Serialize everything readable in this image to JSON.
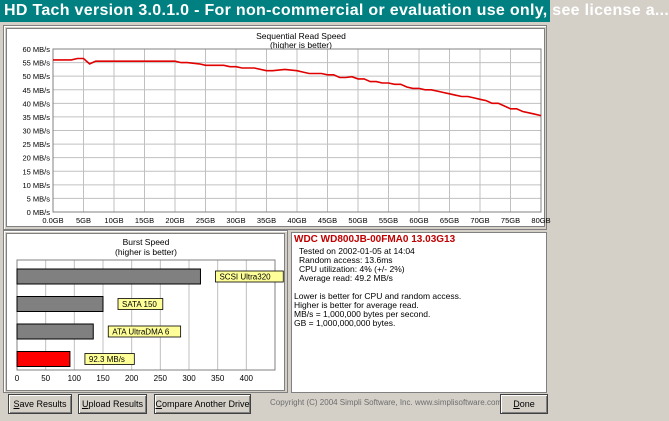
{
  "window": {
    "title": "HD Tach version 3.0.1.0  - For non-commercial or evaluation use only, see license a..."
  },
  "read_chart": {
    "title": "Sequential Read Speed",
    "subtitle": "(higher is better)",
    "y_ticks": [
      "60 MB/s",
      "55 MB/s",
      "50 MB/s",
      "45 MB/s",
      "40 MB/s",
      "35 MB/s",
      "30 MB/s",
      "25 MB/s",
      "20 MB/s",
      "15 MB/s",
      "10 MB/s",
      "5 MB/s",
      "0 MB/s"
    ],
    "x_ticks": [
      "0.0GB",
      "5GB",
      "10GB",
      "15GB",
      "20GB",
      "25GB",
      "30GB",
      "35GB",
      "40GB",
      "45GB",
      "50GB",
      "55GB",
      "60GB",
      "65GB",
      "70GB",
      "75GB",
      "80GB"
    ],
    "line_color": "#e00000"
  },
  "burst_chart": {
    "title": "Burst Speed",
    "subtitle": "(higher is better)",
    "x_ticks": [
      "0",
      "50",
      "100",
      "150",
      "200",
      "250",
      "300",
      "350",
      "400"
    ]
  },
  "chart_data": [
    {
      "type": "line",
      "title": "Sequential Read Speed",
      "subtitle": "(higher is better)",
      "xlabel": "",
      "ylabel": "",
      "xlim": [
        0,
        80
      ],
      "ylim": [
        0,
        60
      ],
      "grid": true,
      "series": [
        {
          "x": [
            0,
            1,
            2,
            3,
            4,
            5,
            6,
            7,
            8,
            10,
            12,
            15,
            18,
            20,
            21,
            22,
            24,
            25,
            26,
            28,
            29,
            30,
            31,
            33,
            35,
            36,
            38,
            40,
            41,
            42,
            43,
            44,
            45,
            46,
            47,
            48,
            49,
            50,
            51,
            52,
            53,
            54,
            55,
            56,
            57,
            58,
            59,
            60,
            61,
            62,
            63,
            64,
            65,
            66,
            67,
            68,
            69,
            70,
            71,
            72,
            73,
            74,
            75,
            76,
            77,
            78,
            79,
            80
          ],
          "y": [
            56,
            56,
            56,
            56,
            56.5,
            56.5,
            54.5,
            55.5,
            55.5,
            55.5,
            55.5,
            55.5,
            55.5,
            55.5,
            55,
            55,
            54.5,
            54,
            54,
            54,
            53.5,
            53.5,
            53,
            53,
            52,
            52,
            52.5,
            52,
            51.5,
            51,
            51,
            51,
            50.5,
            50.5,
            49.5,
            49.5,
            49.8,
            49,
            49,
            48,
            48,
            47.5,
            47.5,
            47,
            47,
            46,
            45.5,
            45.5,
            45,
            45,
            44.5,
            44,
            43.5,
            43,
            42.5,
            42.5,
            42,
            41.5,
            41,
            40,
            40,
            39,
            38,
            38,
            37,
            36.5,
            36,
            35.5
          ]
        }
      ]
    },
    {
      "type": "bar",
      "orientation": "horizontal",
      "title": "Burst Speed",
      "subtitle": "(higher is better)",
      "categories": [
        "SCSI Ultra320",
        "SATA 150",
        "ATA UltraDMA 6",
        "92.3 MB/s"
      ],
      "values": [
        320,
        150,
        133,
        92.3
      ],
      "colors": [
        "#808080",
        "#808080",
        "#808080",
        "#ff0000"
      ],
      "xlim": [
        0,
        450
      ],
      "grid": true
    }
  ],
  "info": {
    "drive": "WDC WD800JB-00FMA0 13.03G13",
    "tested": "Tested on 2002-01-05 at 14:04",
    "random_access": "Random access: 13.6ms",
    "cpu": "CPU utilization: 4% (+/- 2%)",
    "average_read": "Average read: 49.2 MB/s",
    "note1": "Lower is better for CPU and random access.",
    "note2": "Higher is better for average read.",
    "note3": "MB/s = 1,000,000 bytes per second.",
    "note4": "GB = 1,000,000,000 bytes."
  },
  "buttons": {
    "save": {
      "first": "S",
      "rest": "ave Results"
    },
    "upload": {
      "first": "U",
      "rest": "pload Results"
    },
    "compare": {
      "first": "C",
      "rest": "ompare Another Drive"
    },
    "done": {
      "first": "D",
      "rest": "one"
    }
  },
  "copyright": "Copyright (C) 2004 Simpli Software, Inc. www.simplisoftware.com"
}
